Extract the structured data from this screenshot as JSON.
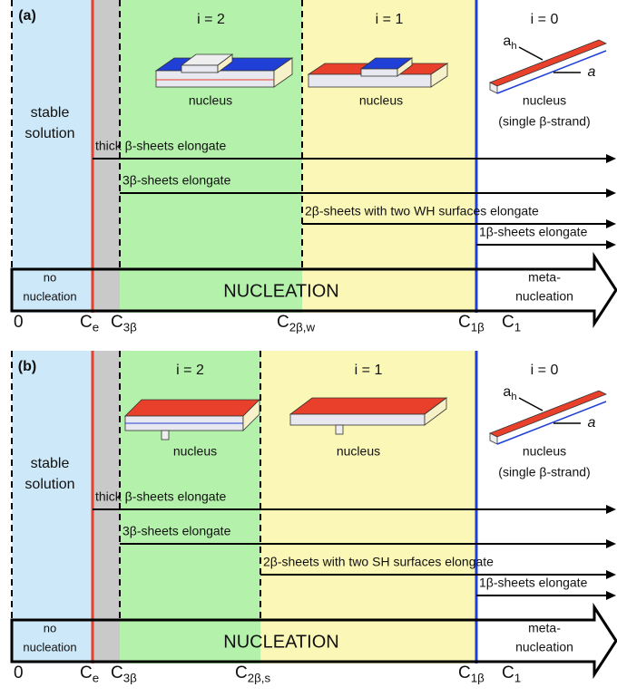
{
  "panels": [
    {
      "label": "(a)",
      "stable": [
        "stable",
        "solution"
      ],
      "regions": [
        "i = 2",
        "i = 1",
        "i = 0"
      ],
      "nucleus": [
        "nucleus",
        "nucleus",
        "nucleus"
      ],
      "strand_note": "(single β-strand)",
      "strand_labels": {
        "ah": {
          "main": "a",
          "sub": "h"
        },
        "a": "a"
      },
      "arrows": [
        "thick β-sheets elongate",
        "3β-sheets elongate",
        "2β-sheets with two WH surfaces elongate",
        "1β-sheets elongate"
      ],
      "bar": {
        "left": [
          "no",
          "nucleation"
        ],
        "center": "NUCLEATION",
        "right": [
          "meta-",
          "nucleation"
        ]
      },
      "axis": [
        {
          "main": "0"
        },
        {
          "main": "C",
          "sub": "e"
        },
        {
          "main": "C",
          "sub": "3β"
        },
        {
          "main": "C",
          "sub": "2β,w"
        },
        {
          "main": "C",
          "sub": "1β"
        },
        {
          "main": "C",
          "sub": "1"
        }
      ]
    },
    {
      "label": "(b)",
      "stable": [
        "stable",
        "solution"
      ],
      "regions": [
        "i = 2",
        "i = 1",
        "i = 0"
      ],
      "nucleus": [
        "nucleus",
        "nucleus",
        "nucleus"
      ],
      "strand_note": "(single β-strand)",
      "strand_labels": {
        "ah": {
          "main": "a",
          "sub": "h"
        },
        "a": "a"
      },
      "arrows": [
        "thick β-sheets elongate",
        "3β-sheets elongate",
        "2β-sheets with two SH surfaces elongate",
        "1β-sheets elongate"
      ],
      "bar": {
        "left": [
          "no",
          "nucleation"
        ],
        "center": "NUCLEATION",
        "right": [
          "meta-",
          "nucleation"
        ]
      },
      "axis": [
        {
          "main": "0"
        },
        {
          "main": "C",
          "sub": "e"
        },
        {
          "main": "C",
          "sub": "3β"
        },
        {
          "main": "C",
          "sub": "2β,s"
        },
        {
          "main": "C",
          "sub": "1β"
        },
        {
          "main": "C",
          "sub": "1"
        }
      ]
    }
  ]
}
